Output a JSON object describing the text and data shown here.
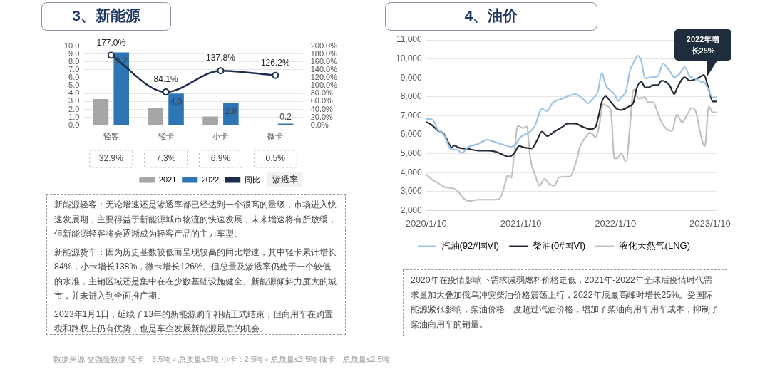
{
  "chart_data": [
    {
      "type": "bar",
      "title": "3、新能源",
      "categories": [
        "轻客",
        "轻卡",
        "小卡",
        "微卡"
      ],
      "series": [
        {
          "name": "2021",
          "color": "#a6a6a6",
          "values": [
            3.3,
            2.2,
            1.1,
            0
          ]
        },
        {
          "name": "2022",
          "color": "#2e75b6",
          "values": [
            9.2,
            4.0,
            2.8,
            0.2
          ],
          "value_labels": [
            "9.2",
            "4.0",
            "2.8",
            "0.2"
          ]
        },
        {
          "name": "同比",
          "type": "line",
          "axis": "y2",
          "color": "#1f2d4d",
          "values": [
            177.0,
            84.1,
            137.8,
            126.2
          ],
          "value_labels": [
            "177.0%",
            "84.1%",
            "137.8%",
            "126.2%"
          ]
        }
      ],
      "ylim": [
        0,
        10
      ],
      "yticks": [
        {
          "value": 0,
          "label": "0.0"
        },
        {
          "value": 1,
          "label": "1.0"
        },
        {
          "value": 2,
          "label": "2.0"
        },
        {
          "value": 3,
          "label": "3.0"
        },
        {
          "value": 4,
          "label": "4.0"
        },
        {
          "value": 5,
          "label": "5.0"
        },
        {
          "value": 6,
          "label": "6.0"
        },
        {
          "value": 7,
          "label": "7.0"
        },
        {
          "value": 8,
          "label": "8.0"
        },
        {
          "value": 9,
          "label": "9.0"
        },
        {
          "value": 10,
          "label": "10.0"
        }
      ],
      "y2lim": [
        0,
        200
      ],
      "y2ticks": [
        {
          "value": 0,
          "label": "0.0%"
        },
        {
          "value": 20,
          "label": "20.0%"
        },
        {
          "value": 40,
          "label": "40.0%"
        },
        {
          "value": 60,
          "label": "60.0%"
        },
        {
          "value": 80,
          "label": "80.0%"
        },
        {
          "value": 100,
          "label": "100.0%"
        },
        {
          "value": 120,
          "label": "120.0%"
        },
        {
          "value": 140,
          "label": "140.0%"
        },
        {
          "value": 160,
          "label": "160.0%"
        },
        {
          "value": 180,
          "label": "180.0%"
        },
        {
          "value": 200,
          "label": "200.0%"
        }
      ],
      "grid": "y",
      "legend": "bottom",
      "legend_title": "渗透率",
      "marker": "circle",
      "annotations": [
        "32.9%",
        "7.3%",
        "6.9%",
        "0.5%",
        "新能源轻客：无论增速还是渗透率都已经达到一个很高的量级，市场进入快速发展期，主要得益于新能源城市物流的快速发展，未来增速将有所放缓，但新能源轻客将会逐渐成为轻客产品的主力车型。",
        "新能源货车：因为历史基数较低而呈现较高的同比增速，其中轻卡累计增长84%，小卡增长138%，微卡增长126%。但总量及渗透率仍处于一个较低的水准，主销区域还是集中在在少数基础设施健全、新能源倾斜力度大的城市，并未进入到全面推广期。",
        "2023年1月1日，延续了13年的新能源购车补贴正式结束，但商用车在购置税和路权上仍有优势，也是车企发展新能源最后的机会。",
        "数据来源:交强险数据 轻卡：3.5吨＜总质量≤6吨  小卡：2.5吨＜总质量≤3.5吨  微卡：总质量≤2.5吨"
      ]
    },
    {
      "type": "line",
      "title": "4、油价",
      "series": [
        {
          "name": "汽油(92#国VI)",
          "color": "#9dc3e6",
          "x": [
            "2020-01-10",
            "2020-02-04",
            "2020-02-23",
            "2020-03-19",
            "2020-04-03",
            "2020-04-17",
            "2020-05-07",
            "2020-05-27",
            "2020-06-20",
            "2020-07-30",
            "2020-09-02",
            "2020-09-26",
            "2020-11-05",
            "2020-12-04",
            "2020-12-19",
            "2021-01-08",
            "2021-02-01",
            "2021-03-03",
            "2021-04-01",
            "2021-04-21",
            "2021-05-11",
            "2021-06-19",
            "2021-07-18",
            "2021-08-07",
            "2021-09-06",
            "2021-09-25",
            "2021-10-15",
            "2021-11-04",
            "2021-11-18",
            "2021-12-03",
            "2021-12-18",
            "2022-01-06",
            "2022-01-21",
            "2022-01-31",
            "2022-02-20",
            "2022-03-06",
            "2022-03-21",
            "2022-04-05",
            "2022-04-20",
            "2022-05-04",
            "2022-05-29",
            "2022-06-23",
            "2022-07-12",
            "2022-08-06",
            "2022-08-25",
            "2022-09-14",
            "2022-10-04",
            "2022-10-23",
            "2022-11-12",
            "2022-12-07",
            "2022-12-21",
            "2023-01-05",
            "2023-01-20",
            "2023-02-04"
          ],
          "values": [
            6830,
            6790,
            6290,
            5990,
            5520,
            5220,
            5220,
            5040,
            5340,
            5520,
            5730,
            5640,
            5460,
            5360,
            5460,
            5870,
            6050,
            6410,
            7360,
            7240,
            7660,
            7900,
            8080,
            8140,
            7900,
            7660,
            7900,
            8320,
            9270,
            8620,
            8380,
            8140,
            7780,
            7960,
            8320,
            9330,
            9810,
            10170,
            9870,
            8970,
            9030,
            9090,
            9750,
            9390,
            9030,
            9210,
            9570,
            9090,
            8970,
            8790,
            8740,
            8320,
            7960,
            7960
          ]
        },
        {
          "name": "柴油(0#国VI)",
          "color": "#222a35",
          "x": [
            "2020-01-10",
            "2020-01-30",
            "2020-02-23",
            "2020-03-19",
            "2020-04-03",
            "2020-04-17",
            "2020-04-27",
            "2020-05-17",
            "2020-06-20",
            "2020-07-30",
            "2020-09-07",
            "2020-10-06",
            "2020-10-26",
            "2020-11-24",
            "2020-12-14",
            "2021-01-03",
            "2021-01-22",
            "2021-02-21",
            "2021-03-13",
            "2021-04-01",
            "2021-04-21",
            "2021-05-20",
            "2021-06-19",
            "2021-07-09",
            "2021-08-07",
            "2021-09-06",
            "2021-10-05",
            "2021-10-25",
            "2021-11-04",
            "2021-11-18",
            "2021-12-03",
            "2021-12-23",
            "2022-01-16",
            "2022-01-31",
            "2022-03-01",
            "2022-03-21",
            "2022-03-31",
            "2022-04-20",
            "2022-05-04",
            "2022-05-19",
            "2022-06-03",
            "2022-06-23",
            "2022-07-07",
            "2022-08-06",
            "2022-08-25",
            "2022-09-04",
            "2022-10-04",
            "2022-10-23",
            "2022-11-22",
            "2022-12-17",
            "2023-01-05",
            "2023-01-20",
            "2023-02-04"
          ],
          "values": [
            6670,
            6530,
            6230,
            6030,
            5640,
            5310,
            5430,
            5310,
            5250,
            5160,
            5160,
            5100,
            4980,
            4840,
            5000,
            5400,
            5330,
            5280,
            5700,
            6170,
            5930,
            6170,
            6410,
            6590,
            6590,
            6410,
            6290,
            6410,
            6890,
            7720,
            8020,
            7720,
            7360,
            7300,
            7480,
            7720,
            8380,
            8800,
            8500,
            8500,
            8620,
            8620,
            8850,
            8620,
            8140,
            8440,
            9030,
            8850,
            8970,
            9150,
            8380,
            7750,
            7750
          ]
        },
        {
          "name": "液化天然气(LNG)",
          "color": "#c0c0c0",
          "x": [
            "2020-01-10",
            "2020-02-04",
            "2020-02-28",
            "2020-03-24",
            "2020-04-17",
            "2020-05-12",
            "2020-06-01",
            "2020-06-25",
            "2020-07-30",
            "2020-09-07",
            "2020-10-06",
            "2020-10-26",
            "2020-11-10",
            "2020-11-20",
            "2020-12-04",
            "2020-12-14",
            "2020-12-29",
            "2021-01-18",
            "2021-02-01",
            "2021-02-16",
            "2021-03-08",
            "2021-03-22",
            "2021-04-11",
            "2021-05-01",
            "2021-05-20",
            "2021-06-04",
            "2021-06-29",
            "2021-07-18",
            "2021-08-07",
            "2021-08-27",
            "2021-09-20",
            "2021-10-05",
            "2021-10-25",
            "2021-11-08",
            "2021-11-23",
            "2021-12-13",
            "2021-12-23",
            "2022-01-06",
            "2022-01-21",
            "2022-01-31",
            "2022-02-20",
            "2022-03-06",
            "2022-03-21",
            "2022-04-10",
            "2022-05-04",
            "2022-05-14",
            "2022-06-03",
            "2022-06-23",
            "2022-07-07",
            "2022-07-27",
            "2022-08-16",
            "2022-09-04",
            "2022-09-24",
            "2022-10-14",
            "2022-11-02",
            "2022-11-17",
            "2022-12-02",
            "2022-12-21",
            "2023-01-05",
            "2023-01-20",
            "2023-02-04"
          ],
          "values": [
            3910,
            3610,
            3430,
            3220,
            3190,
            3010,
            2660,
            2500,
            2570,
            2570,
            2570,
            2770,
            3430,
            3850,
            3730,
            4860,
            6470,
            6350,
            6430,
            4680,
            3790,
            3310,
            3670,
            3370,
            3310,
            3730,
            3790,
            3790,
            4380,
            5400,
            5930,
            6110,
            5870,
            6470,
            7600,
            7480,
            7300,
            4740,
            4800,
            5040,
            4560,
            6290,
            8380,
            7900,
            7980,
            7720,
            7720,
            7130,
            6650,
            6290,
            6200,
            7070,
            6650,
            7070,
            7420,
            7180,
            6170,
            5400,
            7480,
            7180,
            7180
          ]
        }
      ],
      "xlim": [
        "2020-01-10",
        "2023-02-04"
      ],
      "xticks": [
        {
          "value": "2020-01-10",
          "label": "2020/1/10"
        },
        {
          "value": "2021-01-10",
          "label": "2021/1/10"
        },
        {
          "value": "2022-01-10",
          "label": "2022/1/10"
        },
        {
          "value": "2023-01-10",
          "label": "2023/1/10"
        }
      ],
      "ylim": [
        2000,
        11000
      ],
      "yticks": [
        {
          "value": 2000,
          "label": "2,000"
        },
        {
          "value": 3000,
          "label": "3,000"
        },
        {
          "value": 4000,
          "label": "4,000"
        },
        {
          "value": 5000,
          "label": "5,000"
        },
        {
          "value": 6000,
          "label": "6,000"
        },
        {
          "value": 7000,
          "label": "7,000"
        },
        {
          "value": 8000,
          "label": "8,000"
        },
        {
          "value": 9000,
          "label": "9,000"
        },
        {
          "value": 10000,
          "label": "10,000"
        },
        {
          "value": 11000,
          "label": "11,000"
        }
      ],
      "grid": "y",
      "legend": "bottom",
      "marker": "none",
      "annotations": [
        {
          "text": "2022年增长25%",
          "x": "2023-01-05",
          "y": 9000
        },
        "2020年在疫情影响下需求减弱燃料价格走低，2021年-2022年全球后疫情时代需求量加大叠加俄乌冲突柴油价格震荡上行，2022年底最高峰时增长25%。受国际能源紧张影响，柴油价格一度超过汽油价格，增加了柴油商用车用车成本，抑制了柴油商用车的销量。"
      ]
    }
  ]
}
